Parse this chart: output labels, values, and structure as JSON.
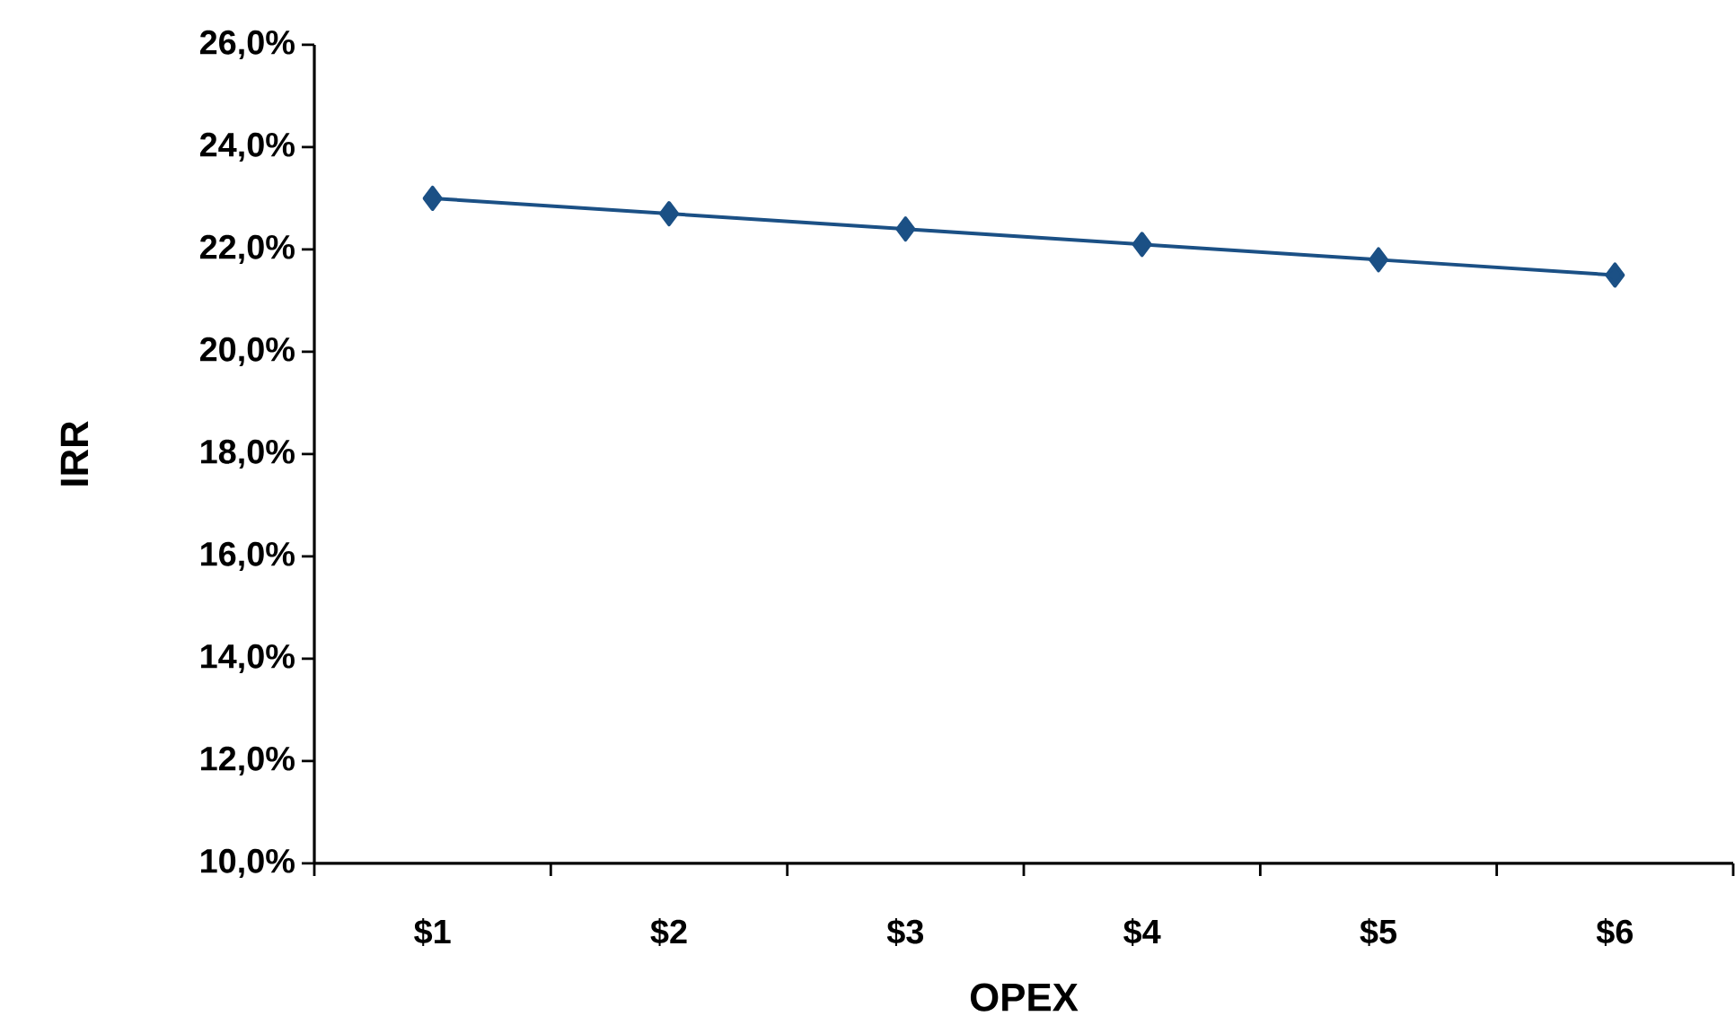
{
  "chart_data": {
    "type": "line",
    "xlabel": "OPEX",
    "ylabel": "IRR",
    "categories": [
      "$1",
      "$2",
      "$3",
      "$4",
      "$5",
      "$6"
    ],
    "values": [
      23.0,
      22.7,
      22.4,
      22.1,
      21.8,
      21.5
    ],
    "color": "#1b5085",
    "marker": "diamond",
    "line_style": "solid",
    "ylim": [
      10,
      26
    ],
    "yticks": [
      {
        "value": 10,
        "label": "10,0%"
      },
      {
        "value": 12,
        "label": "12,0%"
      },
      {
        "value": 14,
        "label": "14,0%"
      },
      {
        "value": 16,
        "label": "16,0%"
      },
      {
        "value": 18,
        "label": "18,0%"
      },
      {
        "value": 20,
        "label": "20,0%"
      },
      {
        "value": 22,
        "label": "22,0%"
      },
      {
        "value": 24,
        "label": "24,0%"
      },
      {
        "value": 26,
        "label": "26,0%"
      }
    ]
  }
}
